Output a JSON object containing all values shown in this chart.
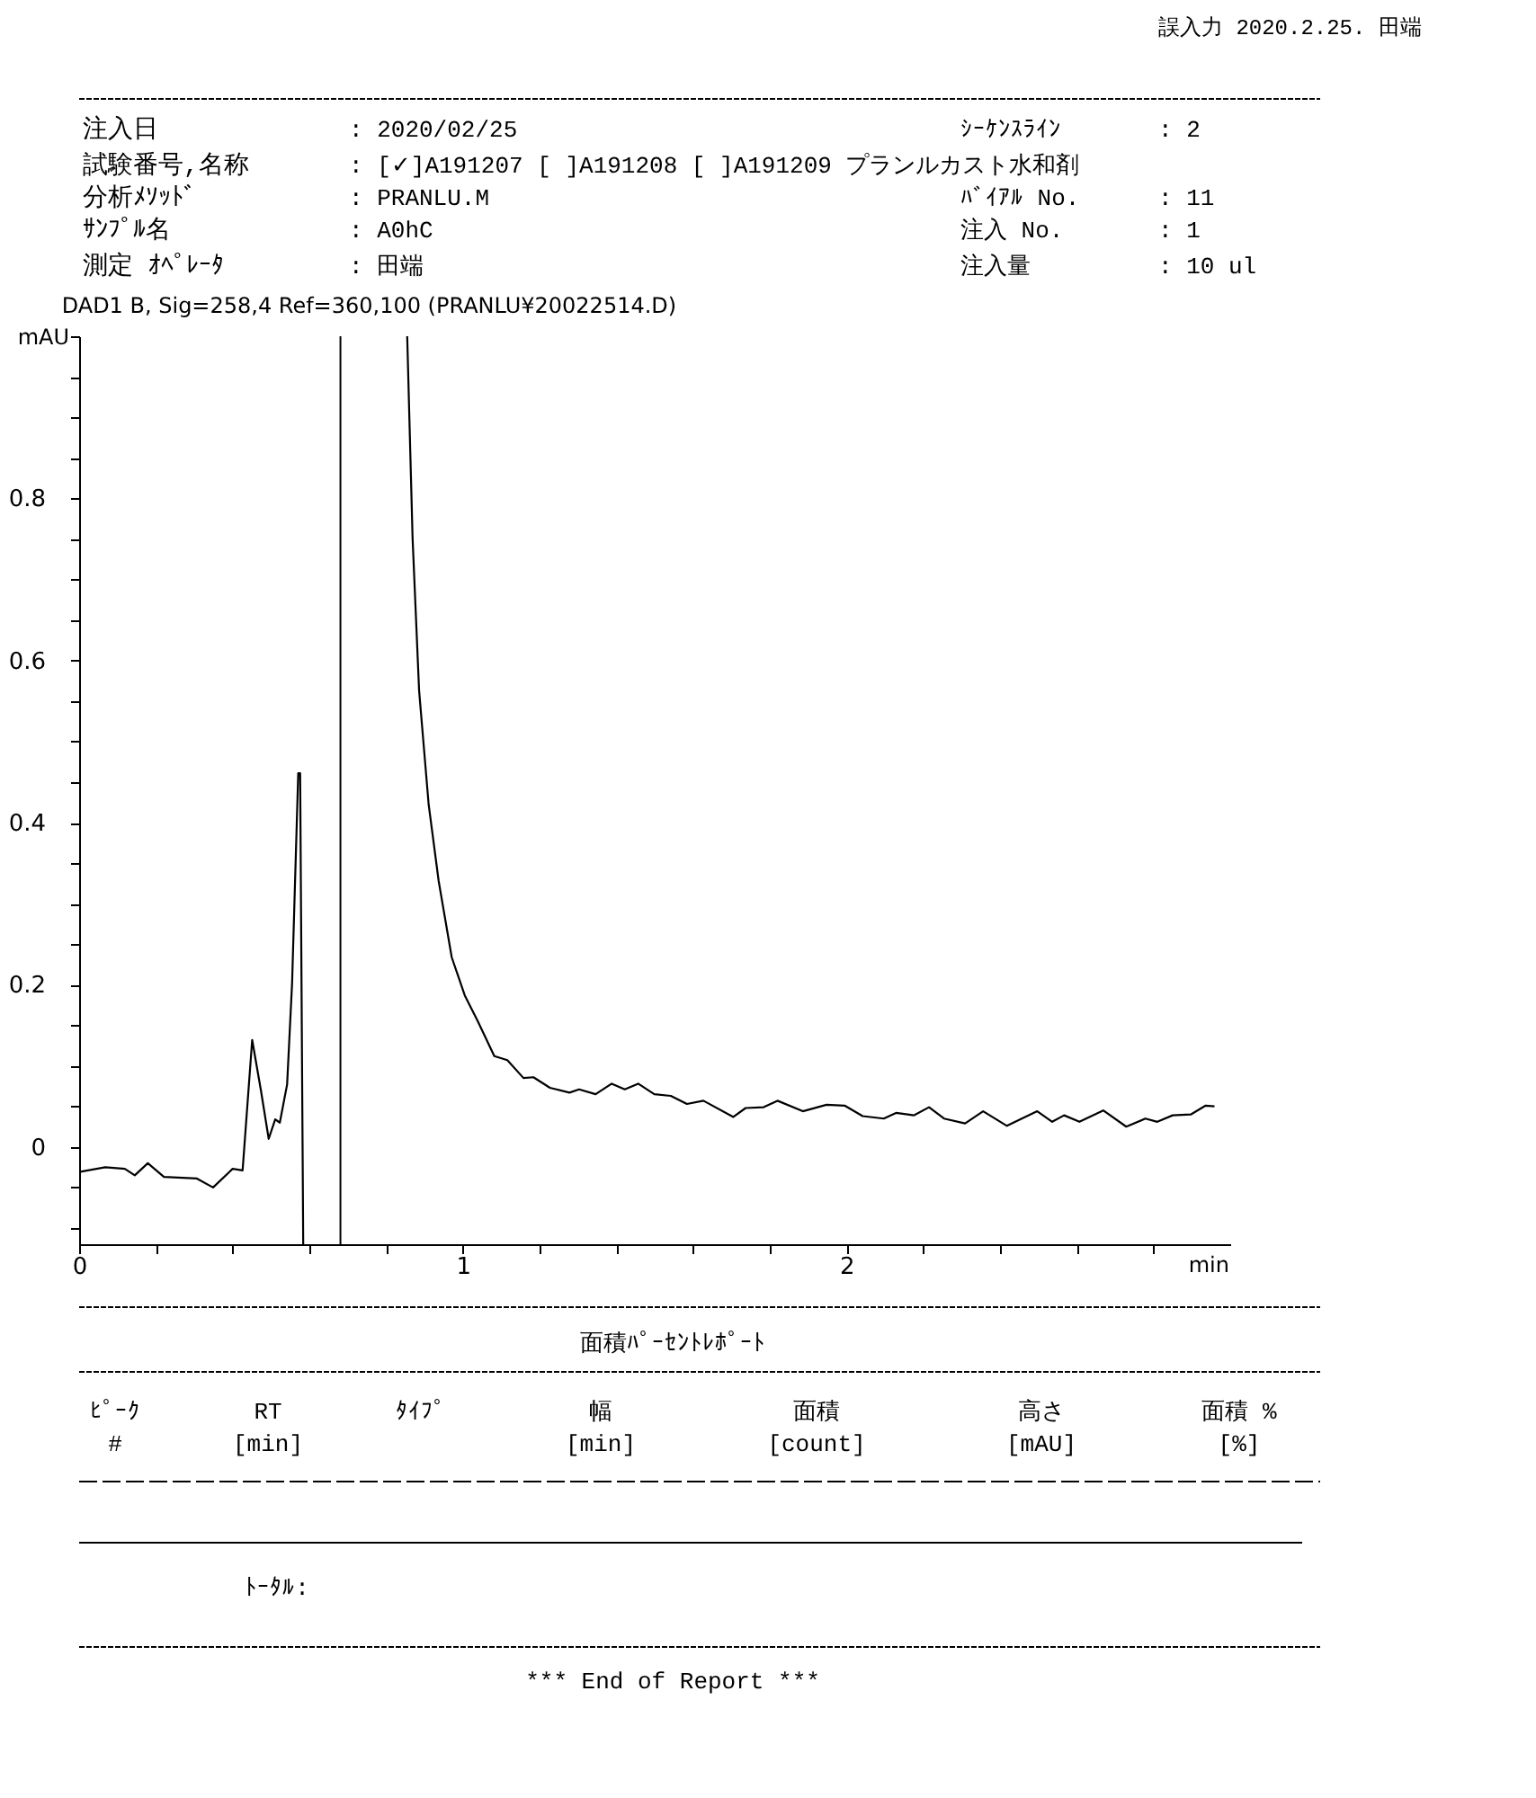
{
  "chart_data": {
    "type": "line",
    "title": "DAD1 B, Sig=258,4 Ref=360,100 (PRANLU¥20022514.D)",
    "xlabel": "min",
    "ylabel": "mAU",
    "x": [
      0,
      0.068,
      0.119,
      0.145,
      0.179,
      0.221,
      0.307,
      0.349,
      0.4,
      0.426,
      0.451,
      0.474,
      0.494,
      0.511,
      0.523,
      0.542,
      0.555,
      0.571,
      0.576,
      0.584,
      0.7,
      0.855,
      0.869,
      0.886,
      0.911,
      0.937,
      0.971,
      1.005,
      1.039,
      1.082,
      1.116,
      1.158,
      1.184,
      1.227,
      1.278,
      1.303,
      1.346,
      1.388,
      1.422,
      1.457,
      1.499,
      1.542,
      1.584,
      1.627,
      1.705,
      1.737,
      1.784,
      1.82,
      1.886,
      1.948,
      1.995,
      2.042,
      2.097,
      2.129,
      2.176,
      2.215,
      2.254,
      2.309,
      2.356,
      2.418,
      2.497,
      2.536,
      2.567,
      2.607,
      2.669,
      2.729,
      2.779,
      2.81,
      2.85,
      2.897,
      2.936,
      2.959
    ],
    "series": [
      {
        "color": "#000000",
        "values": [
          -0.031,
          -0.025,
          -0.027,
          -0.035,
          -0.02,
          -0.037,
          -0.039,
          -0.05,
          -0.027,
          -0.029,
          0.132,
          0.069,
          0.01,
          0.034,
          0.03,
          0.077,
          0.202,
          0.461,
          0.461,
          -0.12,
          null,
          1.0,
          0.751,
          0.563,
          0.422,
          0.328,
          0.234,
          0.187,
          0.155,
          0.112,
          0.107,
          0.085,
          0.086,
          0.073,
          0.067,
          0.071,
          0.065,
          0.078,
          0.071,
          0.078,
          0.065,
          0.063,
          0.053,
          0.057,
          0.037,
          0.048,
          0.049,
          0.057,
          0.044,
          0.052,
          0.051,
          0.038,
          0.035,
          0.042,
          0.039,
          0.049,
          0.035,
          0.029,
          0.044,
          0.026,
          0.044,
          0.031,
          0.039,
          0.031,
          0.045,
          0.025,
          0.035,
          0.031,
          0.039,
          0.04,
          0.051,
          0.05
        ]
      }
    ],
    "xlim": [
      0,
      3
    ],
    "xticks": [
      0,
      {
        "value": 0.2,
        "label": null
      },
      {
        "value": 0.4,
        "label": null
      },
      {
        "value": 0.6,
        "label": null
      },
      {
        "value": 0.8,
        "label": null
      },
      1,
      {
        "value": 1.2,
        "label": null
      },
      {
        "value": 1.4,
        "label": null
      },
      {
        "value": 1.6,
        "label": null
      },
      {
        "value": 1.8,
        "label": null
      },
      2,
      {
        "value": 2.2,
        "label": null
      },
      {
        "value": 2.4,
        "label": null
      },
      {
        "value": 2.6,
        "label": null
      },
      {
        "value": 2.8,
        "label": null
      }
    ],
    "ylim": [
      -0.12,
      1.0
    ],
    "yticks": [
      {
        "value": -0.1,
        "label": null
      },
      {
        "value": -0.05,
        "label": null
      },
      0,
      {
        "value": 0.05,
        "label": null
      },
      {
        "value": 0.1,
        "label": null
      },
      {
        "value": 0.15,
        "label": null
      },
      0.2,
      {
        "value": 0.25,
        "label": null
      },
      {
        "value": 0.3,
        "label": null
      },
      {
        "value": 0.35,
        "label": null
      },
      0.4,
      {
        "value": 0.45,
        "label": null
      },
      {
        "value": 0.5,
        "label": null
      },
      {
        "value": 0.55,
        "label": null
      },
      0.6,
      {
        "value": 0.65,
        "label": null
      },
      {
        "value": 0.7,
        "label": null
      },
      {
        "value": 0.75,
        "label": null
      },
      0.8,
      {
        "value": 0.85,
        "label": null
      },
      {
        "value": 0.9,
        "label": null
      },
      {
        "value": 0.95,
        "label": null
      },
      {
        "value": 1.0,
        "label": null
      }
    ],
    "ref_lines": [
      {
        "axis": "x",
        "value": 0.681,
        "color": "#000000"
      }
    ],
    "grid": false,
    "legend": false,
    "marker": "none",
    "line_style": "solid",
    "annotations": [
      "誤入力 2020.2.25. 田端",
      "注入日",
      ": 2020/02/25",
      "試験番号,名称",
      ": [✓]A191207 [ ]A191208 [ ]A191209 プランルカスト水和剤",
      "分析ﾒｿｯﾄﾞ",
      ": PRANLU.M",
      "ｻﾝﾌﾟﾙ名",
      ": A0hC",
      "測定 ｵﾍﾟﾚｰﾀ",
      ": 田端",
      "ｼｰｹﾝｽﾗｲﾝ",
      ":  2",
      "ﾊﾞｲｱﾙ No.",
      ":  11",
      "注入 No.",
      ":  1",
      "注入量",
      ":  10 ul",
      "面積ﾊﾟｰｾﾝﾄﾚﾎﾟｰﾄ",
      "ﾋﾟｰｸ",
      "#",
      "RT",
      "[min]",
      "ﾀｲﾌﾟ",
      "幅",
      "[min]",
      "面積",
      "[count]",
      "高さ",
      "[mAU]",
      "面積 %",
      "[%]",
      "ﾄｰﾀﾙ:",
      "*** End of Report ***"
    ]
  }
}
